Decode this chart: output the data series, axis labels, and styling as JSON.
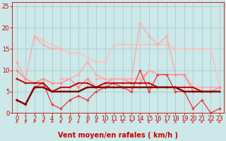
{
  "background_color": "#cce8e8",
  "grid_color": "#aacccc",
  "xlabel": "Vent moyen/en rafales ( km/h )",
  "xlabel_color": "#cc0000",
  "xlabel_fontsize": 7,
  "tick_color": "#cc0000",
  "tick_fontsize": 6,
  "xlim": [
    -0.5,
    23.5
  ],
  "ylim": [
    0,
    26
  ],
  "yticks": [
    0,
    5,
    10,
    15,
    20,
    25
  ],
  "xticks": [
    0,
    1,
    2,
    3,
    4,
    5,
    6,
    7,
    8,
    9,
    10,
    11,
    12,
    13,
    14,
    15,
    16,
    17,
    18,
    19,
    20,
    21,
    22,
    23
  ],
  "lines": [
    {
      "x": [
        0,
        1,
        2,
        3,
        4,
        5,
        6,
        7,
        8,
        9,
        10,
        11,
        12,
        13,
        14,
        15,
        16,
        17,
        18,
        19,
        20,
        21,
        22,
        23
      ],
      "y": [
        null,
        null,
        18,
        17,
        16,
        15,
        14,
        14,
        13,
        12,
        12,
        16,
        16,
        16,
        16,
        16,
        16,
        16,
        15,
        15,
        15,
        15,
        15,
        6
      ],
      "color": "#ffbbbb",
      "linewidth": 1.0,
      "marker": "D",
      "markersize": 2.0,
      "linestyle": "-"
    },
    {
      "x": [
        0,
        1,
        2,
        3,
        4,
        5
      ],
      "y": [
        12,
        8,
        18,
        16,
        15,
        15
      ],
      "color": "#ffaaaa",
      "linewidth": 1.0,
      "marker": "D",
      "markersize": 2.0,
      "linestyle": "-"
    },
    {
      "x": [
        9,
        10,
        11,
        12,
        13,
        14,
        15,
        16,
        17,
        18,
        19,
        20,
        21,
        22,
        23
      ],
      "y": [
        8,
        8,
        8,
        8,
        8,
        21,
        18,
        16,
        18,
        9,
        9,
        6,
        6,
        6,
        6
      ],
      "color": "#ffaaaa",
      "linewidth": 1.0,
      "marker": "D",
      "markersize": 2.0,
      "linestyle": "-"
    },
    {
      "x": [
        0,
        1,
        2,
        3,
        4,
        5,
        6,
        7,
        8,
        9,
        10,
        11,
        12,
        13,
        14,
        15,
        16,
        17,
        18,
        19,
        20,
        21,
        22,
        23
      ],
      "y": [
        10,
        8,
        7,
        8,
        7,
        7,
        8,
        6,
        8,
        6,
        7,
        8,
        8,
        7,
        7,
        10,
        9,
        9,
        9,
        9,
        5,
        5,
        5,
        6
      ],
      "color": "#ff8888",
      "linewidth": 1.0,
      "marker": "D",
      "markersize": 2.0,
      "linestyle": "-"
    },
    {
      "x": [
        5,
        6,
        7,
        8,
        9,
        10,
        11,
        12,
        13,
        14,
        15,
        16
      ],
      "y": [
        8,
        8,
        9,
        12,
        9,
        8,
        8,
        8,
        8,
        8,
        10,
        9
      ],
      "color": "#ffaaaa",
      "linewidth": 1.0,
      "marker": "D",
      "markersize": 2.0,
      "linestyle": "-"
    },
    {
      "x": [
        0,
        1,
        2,
        3,
        4,
        5,
        6,
        7,
        8,
        9,
        10,
        11,
        12,
        13,
        14,
        15,
        16,
        17,
        18,
        19,
        20,
        21,
        22,
        23
      ],
      "y": [
        3,
        2,
        6,
        7,
        2,
        1,
        3,
        4,
        3,
        5,
        6,
        7,
        6,
        5,
        10,
        5,
        9,
        9,
        5,
        5,
        1,
        3,
        0,
        1
      ],
      "color": "#ee4444",
      "linewidth": 1.0,
      "marker": "D",
      "markersize": 2.0,
      "linestyle": "-"
    },
    {
      "x": [
        0,
        1,
        2,
        3,
        4,
        5,
        6,
        7,
        8,
        9,
        10,
        11,
        12,
        13,
        14,
        15,
        16,
        17,
        18,
        19,
        20,
        21,
        22,
        23
      ],
      "y": [
        8,
        7,
        7,
        7,
        5,
        6,
        6,
        7,
        7,
        6,
        7,
        7,
        7,
        7,
        7,
        7,
        6,
        6,
        6,
        6,
        6,
        5,
        5,
        5
      ],
      "color": "#cc0000",
      "linewidth": 1.4,
      "marker": "s",
      "markersize": 2.0,
      "linestyle": "-"
    },
    {
      "x": [
        0,
        1,
        2,
        3,
        4,
        5,
        6,
        7,
        8,
        9,
        10,
        11,
        12,
        13,
        14,
        15,
        16,
        17,
        18,
        19,
        20,
        21,
        22,
        23
      ],
      "y": [
        3,
        2,
        6,
        6,
        5,
        5,
        5,
        5,
        6,
        6,
        6,
        6,
        6,
        6,
        6,
        6,
        6,
        6,
        6,
        5,
        5,
        5,
        5,
        5
      ],
      "color": "#880000",
      "linewidth": 1.8,
      "marker": "s",
      "markersize": 2.0,
      "linestyle": "-"
    }
  ],
  "arrow_color": "#dd3333",
  "arrow_angles": [
    0,
    0,
    225,
    225,
    225,
    45,
    0,
    45,
    0,
    225,
    0,
    45,
    0,
    225,
    0,
    45,
    45,
    45,
    0,
    45,
    45,
    45,
    45,
    45
  ]
}
